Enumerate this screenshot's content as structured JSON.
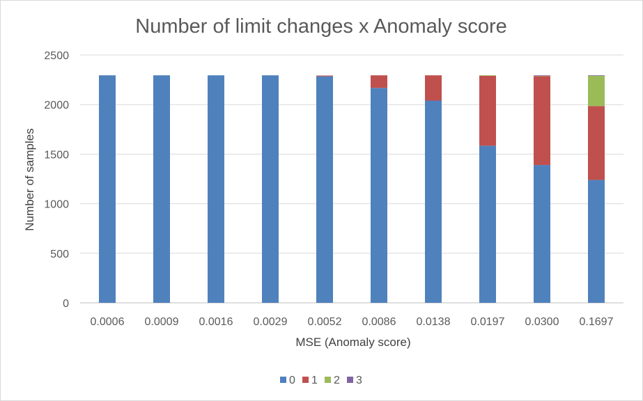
{
  "chart_data": {
    "type": "bar",
    "stacked": true,
    "title": "Number of limit changes x Anomaly score",
    "xlabel": "MSE (Anomaly score)",
    "ylabel": "Number of samples",
    "ylim": [
      0,
      2500
    ],
    "yticks": [
      0,
      500,
      1000,
      1500,
      2000,
      2500
    ],
    "grid": true,
    "legend_position": "bottom",
    "categories": [
      "0.0006",
      "0.0009",
      "0.0016",
      "0.0029",
      "0.0052",
      "0.0086",
      "0.0138",
      "0.0197",
      "0.0300",
      "0.1697"
    ],
    "series": [
      {
        "name": "0",
        "color": "#4f81bd",
        "values": [
          2295,
          2295,
          2295,
          2295,
          2285,
          2168,
          2040,
          1585,
          1390,
          1240
        ]
      },
      {
        "name": "1",
        "color": "#c0504d",
        "values": [
          0,
          0,
          0,
          0,
          8,
          127,
          255,
          708,
          897,
          745
        ]
      },
      {
        "name": "2",
        "color": "#9bbb59",
        "values": [
          0,
          0,
          0,
          0,
          0,
          0,
          0,
          2,
          6,
          305
        ]
      },
      {
        "name": "3",
        "color": "#8064a2",
        "values": [
          0,
          0,
          0,
          0,
          0,
          0,
          0,
          0,
          2,
          5
        ]
      }
    ]
  }
}
